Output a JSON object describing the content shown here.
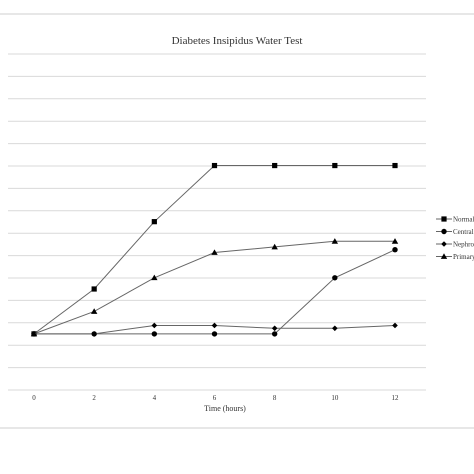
{
  "chart_data": {
    "type": "line",
    "title": "Diabetes Insipidus Water Test",
    "xlabel": "Time (hours)",
    "ylabel": "",
    "x": [
      0,
      2,
      4,
      6,
      8,
      10,
      12
    ],
    "ylim": [
      0,
      10
    ],
    "grid": true,
    "legend_position": "right",
    "line_color": "#666666",
    "marker_color": "#000000",
    "grid_color": "#d9d9d9",
    "border_color": "#cfcfcf",
    "series": [
      {
        "name": "Normal",
        "marker": "square",
        "values": [
          2.0,
          3.6,
          6.0,
          8.0,
          8.0,
          8.0,
          8.0
        ]
      },
      {
        "name": "Central",
        "marker": "circle",
        "values": [
          2.0,
          2.0,
          2.0,
          2.0,
          2.0,
          4.0,
          5.0
        ]
      },
      {
        "name": "Nephrogenic",
        "marker": "diamond",
        "values": [
          2.0,
          2.0,
          2.3,
          2.3,
          2.2,
          2.2,
          2.3
        ]
      },
      {
        "name": "Primary",
        "marker": "triangle",
        "values": [
          2.0,
          2.8,
          4.0,
          4.9,
          5.1,
          5.3,
          5.3
        ]
      }
    ]
  }
}
